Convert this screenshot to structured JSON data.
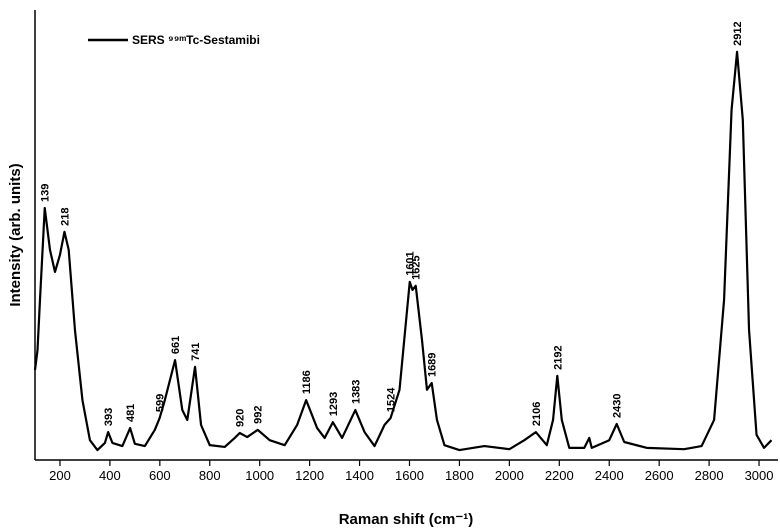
{
  "chart_data": {
    "type": "line",
    "xlabel": "Raman shift (cm⁻¹)",
    "ylabel": "Intensity (arb. units)",
    "xlim": [
      100,
      3076
    ],
    "ylim": [
      0,
      100
    ],
    "xticks": [
      200,
      400,
      600,
      800,
      1000,
      1200,
      1400,
      1600,
      1800,
      2000,
      2200,
      2400,
      2600,
      2800,
      3000
    ],
    "x": [
      100,
      110,
      120,
      139,
      160,
      180,
      200,
      218,
      235,
      260,
      290,
      320,
      350,
      380,
      393,
      410,
      450,
      481,
      500,
      540,
      580,
      599,
      620,
      661,
      690,
      710,
      741,
      765,
      800,
      860,
      900,
      920,
      950,
      992,
      1040,
      1100,
      1150,
      1186,
      1230,
      1260,
      1293,
      1330,
      1383,
      1420,
      1460,
      1500,
      1524,
      1560,
      1601,
      1612,
      1625,
      1650,
      1670,
      1689,
      1710,
      1740,
      1800,
      1900,
      2000,
      2060,
      2106,
      2150,
      2175,
      2192,
      2210,
      2240,
      2300,
      2320,
      2330,
      2400,
      2430,
      2460,
      2550,
      2700,
      2770,
      2820,
      2860,
      2890,
      2912,
      2935,
      2960,
      2990,
      3020,
      3050
    ],
    "series": [
      {
        "name": "SERS ⁹⁹ᵐTc-Sestamibi",
        "color": "#000000",
        "values": [
          20,
          24.4,
          35.6,
          56,
          46.7,
          41.8,
          45.6,
          50.7,
          46.7,
          28.9,
          13.3,
          4.4,
          2.2,
          3.8,
          6.2,
          3.8,
          3.1,
          7.1,
          3.6,
          3.1,
          6.7,
          9.3,
          13.3,
          22.2,
          11.1,
          8.9,
          20.7,
          7.8,
          3.3,
          2.9,
          4.9,
          6,
          5.1,
          6.7,
          4.4,
          3.3,
          7.8,
          13.3,
          7.1,
          4.9,
          8.4,
          4.9,
          11.1,
          6.2,
          3.1,
          7.8,
          9.3,
          15.6,
          39.6,
          37.8,
          38.7,
          26.7,
          15.6,
          17.1,
          8.9,
          3.3,
          2.2,
          3.1,
          2.4,
          4.4,
          6.2,
          3.3,
          8.9,
          18.7,
          8.9,
          2.7,
          2.7,
          4.9,
          2.7,
          4.4,
          8,
          4,
          2.7,
          2.4,
          3.1,
          8.9,
          35.6,
          77.8,
          90.7,
          75.6,
          28.9,
          5.6,
          2.7,
          4.4
        ]
      }
    ],
    "peaks": [
      139,
      218,
      393,
      481,
      599,
      661,
      741,
      920,
      992,
      1186,
      1293,
      1383,
      1524,
      1601,
      1625,
      1689,
      2106,
      2192,
      2430,
      2912
    ]
  }
}
